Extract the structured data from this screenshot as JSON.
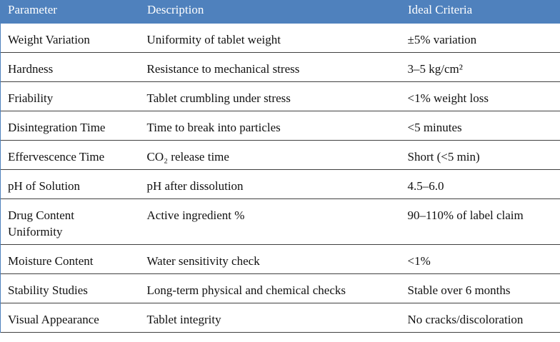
{
  "table": {
    "header": [
      "Parameter",
      "Description",
      "Ideal Criteria"
    ],
    "rows": [
      [
        "Weight Variation",
        "Uniformity of tablet weight",
        "±5% variation"
      ],
      [
        "Hardness",
        "Resistance to mechanical stress",
        "3–5 kg/cm²"
      ],
      [
        "Friability",
        "Tablet crumbling under stress",
        "<1% weight loss"
      ],
      [
        "Disintegration Time",
        "Time to break into particles",
        "<5 minutes"
      ],
      [
        "Effervescence Time",
        "CO₂ release time",
        "Short (<5 min)"
      ],
      [
        "pH of Solution",
        "pH after dissolution",
        "4.5–6.0"
      ],
      [
        "Drug Content Uniformity",
        "Active ingredient %",
        "90–110% of label claim"
      ],
      [
        "Moisture Content",
        "Water sensitivity check",
        "<1%"
      ],
      [
        "Stability Studies",
        "Long-term physical and chemical checks",
        "Stable over 6 months"
      ],
      [
        "Visual Appearance",
        "Tablet integrity",
        "No cracks/discoloration"
      ]
    ]
  }
}
